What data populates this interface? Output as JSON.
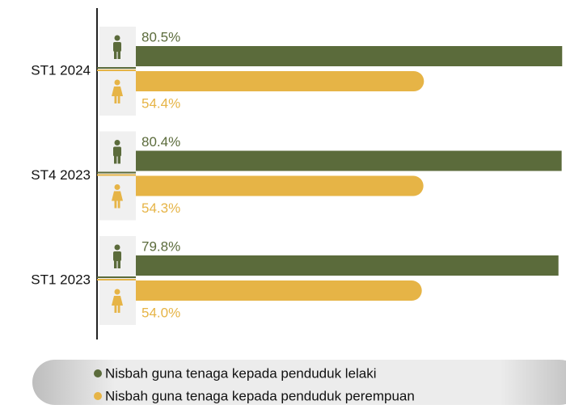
{
  "chart_data": {
    "type": "hbar",
    "categories": [
      "ST1 2024",
      "ST4 2023",
      "ST1 2023"
    ],
    "series": [
      {
        "name": "Nisbah guna tenaga kepada penduduk lelaki",
        "color": "#5b6b3b",
        "values": [
          80.5,
          80.4,
          79.8
        ],
        "value_labels": [
          "80.5%",
          "80.4%",
          "79.8%"
        ]
      },
      {
        "name": "Nisbah guna tenaga kepada penduduk perempuan",
        "color": "#e6b446",
        "values": [
          54.4,
          54.3,
          54.0
        ],
        "value_labels": [
          "54.4%",
          "54.3%",
          "54.0%"
        ]
      }
    ]
  }
}
